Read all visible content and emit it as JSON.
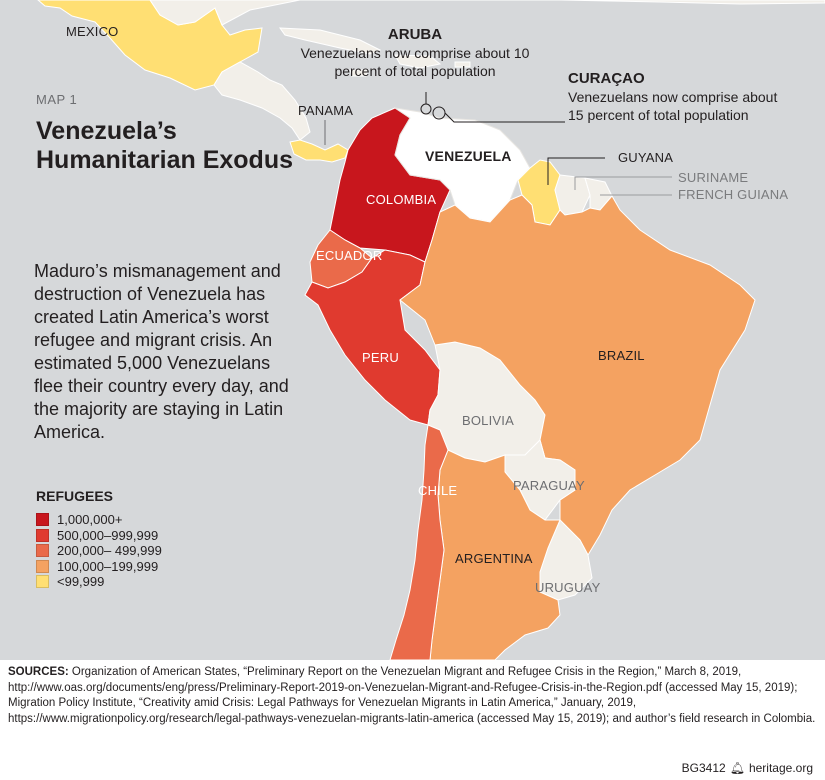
{
  "map_tag": "MAP 1",
  "title": "Venezuela’s Humanitarian Exodus",
  "description": "Maduro’s mismanagement and destruction of Venezuela has created Latin America’s worst refugee and migrant crisis. An estimated 5,000 Venezuelans flee their country every day, and the majority are staying in Latin America.",
  "legend": {
    "title": "REFUGEES",
    "items": [
      {
        "label": "1,000,000+",
        "color": "#c8161d"
      },
      {
        "label": "500,000–999,999",
        "color": "#e03a2f"
      },
      {
        "label": "200,000– 499,999",
        "color": "#ea6a4a"
      },
      {
        "label": "100,000–199,999",
        "color": "#f4a261"
      },
      {
        "label": "<99,999",
        "color": "#ffdf73"
      }
    ]
  },
  "countries": {
    "mexico": {
      "name": "MEXICO",
      "category": "<99,999"
    },
    "panama": {
      "name": "PANAMA",
      "category": "<99,999"
    },
    "colombia": {
      "name": "COLOMBIA",
      "category": "1,000,000+"
    },
    "venezuela": {
      "name": "VENEZUELA"
    },
    "ecuador": {
      "name": "ECUADOR",
      "category": "200,000– 499,999"
    },
    "peru": {
      "name": "PERU",
      "category": "500,000–999,999"
    },
    "brazil": {
      "name": "BRAZIL",
      "category": "100,000–199,999"
    },
    "bolivia": {
      "name": "BOLIVIA"
    },
    "chile": {
      "name": "CHILE",
      "category": "200,000– 499,999"
    },
    "paraguay": {
      "name": "PARAGUAY"
    },
    "argentina": {
      "name": "ARGENTINA",
      "category": "100,000–199,999"
    },
    "uruguay": {
      "name": "URUGUAY"
    },
    "guyana": {
      "name": "GUYANA",
      "category": "<99,999"
    },
    "suriname": {
      "name": "SURINAME"
    },
    "french_guiana": {
      "name": "FRENCH GUIANA"
    }
  },
  "callouts": {
    "aruba": {
      "title": "ARUBA",
      "line1": "Venezuelans now comprise about 10",
      "line2": "percent of total population"
    },
    "curacao": {
      "title": "CURAÇAO",
      "line1": "Venezuelans now comprise about",
      "line2": "15 percent of total population"
    }
  },
  "sources": {
    "label": "SOURCES:",
    "text": "Organization of American States, “Preliminary Report on the Venezuelan Migrant and Refugee Crisis in the Region,” March 8, 2019, http://www.oas.org/documents/eng/press/Preliminary-Report-2019-on-Venezuelan-Migrant-and-Refugee-Crisis-in-the-Region.pdf (accessed May 15, 2019); Migration Policy Institute, “Creativity amid Crisis: Legal Pathways for Venezuelan Migrants in Latin America,” January, 2019, https://www.migrationpolicy.org/research/legal-pathways-venezuelan-migrants-latin-america (accessed May 15, 2019); and author’s field research in Colombia."
  },
  "footer": {
    "code": "BG3412",
    "site": "heritage.org",
    "icon": "bell-icon"
  },
  "colors": {
    "background": "#d6d8da",
    "non_highlighted_country": "#f2efe9",
    "border": "#ffffff"
  }
}
